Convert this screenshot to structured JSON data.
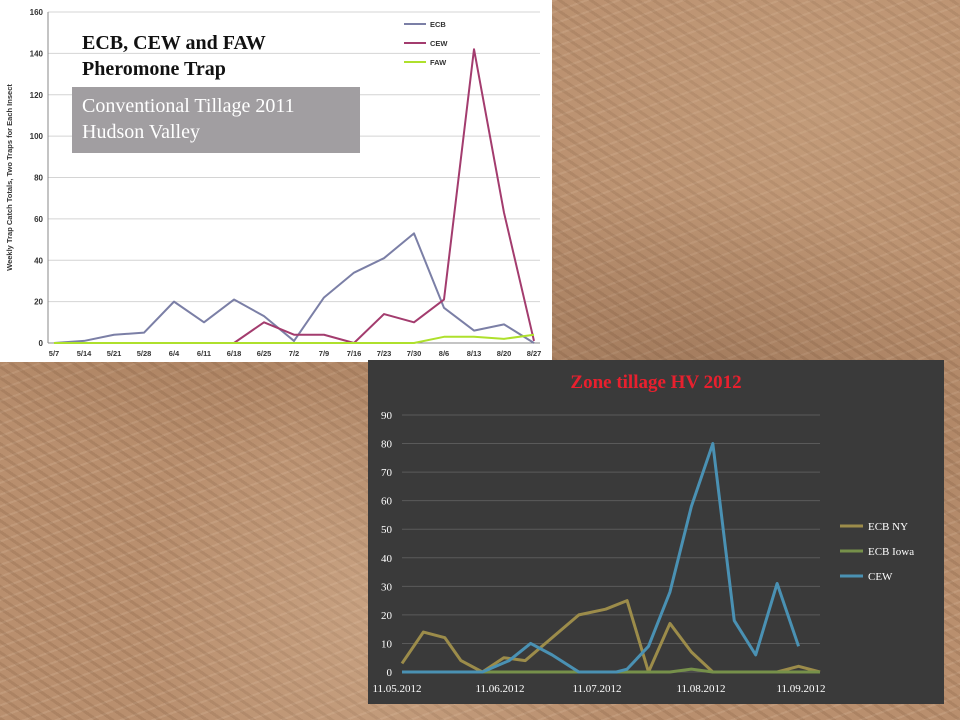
{
  "chart_data": [
    {
      "type": "line",
      "title": "ECB, CEW and FAW Pheromone Trap",
      "subtitle": "Conventional Tillage 2011 Hudson Valley",
      "ylabel": "Weekly Trap Catch Totals, Two Traps for Each Insect",
      "xlabel": "",
      "ylim": [
        0,
        160
      ],
      "yticks": [
        0,
        20,
        40,
        60,
        80,
        100,
        120,
        140,
        160
      ],
      "categories": [
        "5/7",
        "5/14",
        "5/21",
        "5/28",
        "6/4",
        "6/11",
        "6/18",
        "6/25",
        "7/2",
        "7/9",
        "7/16",
        "7/23",
        "7/30",
        "8/6",
        "8/13",
        "8/20",
        "8/27"
      ],
      "legend_position": "top-right",
      "grid": true,
      "series": [
        {
          "name": "ECB",
          "color": "#7b7fa6",
          "values": [
            0,
            1,
            4,
            5,
            20,
            10,
            21,
            13,
            1,
            22,
            34,
            41,
            53,
            17,
            6,
            9,
            0
          ]
        },
        {
          "name": "CEW",
          "color": "#a33c6e",
          "values": [
            0,
            0,
            0,
            0,
            0,
            0,
            0,
            10,
            4,
            4,
            0,
            14,
            10,
            21,
            142,
            63,
            1
          ]
        },
        {
          "name": "FAW",
          "color": "#aee02c",
          "values": [
            0,
            0,
            0,
            0,
            0,
            0,
            0,
            0,
            0,
            0,
            0,
            0,
            0,
            3,
            3,
            2,
            4
          ]
        }
      ]
    },
    {
      "type": "line",
      "title": "Zone tillage HV 2012",
      "xlabel": "",
      "ylabel": "",
      "ylim": [
        0,
        90
      ],
      "yticks": [
        0,
        10,
        20,
        30,
        40,
        50,
        60,
        70,
        80,
        90
      ],
      "xticks": [
        "11.05.2012",
        "11.06.2012",
        "11.07.2012",
        "11.08.2012",
        "11.09.2012"
      ],
      "legend_position": "right",
      "grid": true,
      "series": [
        {
          "name": "ECB NY",
          "color": "#9c8c4a",
          "points": [
            [
              0,
              3
            ],
            [
              4,
              14
            ],
            [
              8,
              12
            ],
            [
              11,
              4
            ],
            [
              15,
              0
            ],
            [
              19,
              5
            ],
            [
              23,
              4
            ],
            [
              28,
              12
            ],
            [
              33,
              20
            ],
            [
              38,
              22
            ],
            [
              42,
              25
            ],
            [
              46,
              0
            ],
            [
              50,
              17
            ],
            [
              54,
              7
            ],
            [
              58,
              0
            ],
            [
              62,
              0
            ],
            [
              66,
              0
            ],
            [
              70,
              0
            ],
            [
              74,
              2
            ],
            [
              78,
              0
            ]
          ]
        },
        {
          "name": "ECB Iowa",
          "color": "#76904a",
          "points": [
            [
              0,
              0
            ],
            [
              10,
              0
            ],
            [
              20,
              0
            ],
            [
              30,
              0
            ],
            [
              40,
              0
            ],
            [
              50,
              0
            ],
            [
              54,
              1
            ],
            [
              58,
              0
            ],
            [
              66,
              0
            ],
            [
              74,
              0
            ],
            [
              78,
              0
            ]
          ]
        },
        {
          "name": "CEW",
          "color": "#4a91b3",
          "points": [
            [
              0,
              0
            ],
            [
              10,
              0
            ],
            [
              15,
              0
            ],
            [
              20,
              4
            ],
            [
              24,
              10
            ],
            [
              28,
              6
            ],
            [
              33,
              0
            ],
            [
              40,
              0
            ],
            [
              42,
              1
            ],
            [
              46,
              9
            ],
            [
              50,
              28
            ],
            [
              54,
              58
            ],
            [
              58,
              80
            ],
            [
              62,
              18
            ],
            [
              66,
              6
            ],
            [
              70,
              31
            ],
            [
              74,
              9
            ]
          ]
        }
      ]
    }
  ]
}
